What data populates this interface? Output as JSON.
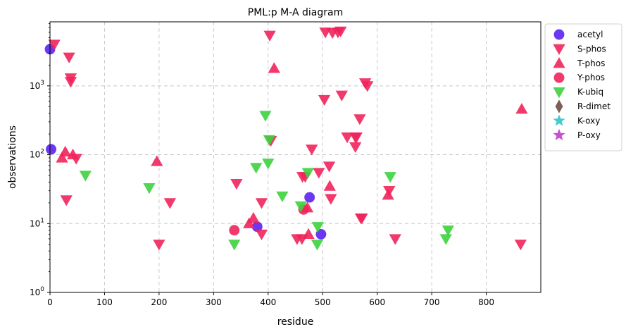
{
  "chart_data": {
    "type": "scatter",
    "title": "PML:p M-A diagram",
    "xlabel": "residue",
    "ylabel": "observations",
    "xlim": [
      0,
      900
    ],
    "ylim": [
      1,
      8500
    ],
    "yscale": "log",
    "xticks": [
      0,
      100,
      200,
      300,
      400,
      500,
      600,
      700,
      800
    ],
    "yticks": [
      {
        "value": 1,
        "base": "10",
        "exp": "0"
      },
      {
        "value": 10,
        "base": "10",
        "exp": "1"
      },
      {
        "value": 100,
        "base": "10",
        "exp": "2"
      },
      {
        "value": 1000,
        "base": "10",
        "exp": "3"
      }
    ],
    "grid": true,
    "legend_position": "outside-right",
    "series": [
      {
        "name": "acetyl",
        "marker": "circle",
        "color": "#5b21f0",
        "points": [
          [
            0,
            3400
          ],
          [
            2,
            120
          ],
          [
            380,
            9
          ],
          [
            476,
            24
          ],
          [
            497,
            7
          ]
        ]
      },
      {
        "name": "S-phos",
        "marker": "triangle-down",
        "color": "#f0245c",
        "points": [
          [
            8,
            4000
          ],
          [
            35,
            2600
          ],
          [
            38,
            1300
          ],
          [
            38,
            1150
          ],
          [
            30,
            22
          ],
          [
            48,
            88
          ],
          [
            200,
            5
          ],
          [
            220,
            20
          ],
          [
            342,
            38
          ],
          [
            388,
            20
          ],
          [
            388,
            7
          ],
          [
            403,
            5400
          ],
          [
            405,
            160
          ],
          [
            453,
            6
          ],
          [
            462,
            6
          ],
          [
            463,
            48
          ],
          [
            468,
            48
          ],
          [
            480,
            120
          ],
          [
            493,
            55
          ],
          [
            503,
            630
          ],
          [
            505,
            6000
          ],
          [
            518,
            5900
          ],
          [
            528,
            6000
          ],
          [
            533,
            6200
          ],
          [
            535,
            730
          ],
          [
            512,
            68
          ],
          [
            515,
            23
          ],
          [
            545,
            180
          ],
          [
            560,
            180
          ],
          [
            562,
            180
          ],
          [
            560,
            130
          ],
          [
            568,
            330
          ],
          [
            570,
            12
          ],
          [
            572,
            12
          ],
          [
            578,
            1100
          ],
          [
            582,
            1000
          ],
          [
            622,
            30
          ],
          [
            633,
            6
          ],
          [
            863,
            5
          ]
        ]
      },
      {
        "name": "T-phos",
        "marker": "triangle-up",
        "color": "#f0245c",
        "points": [
          [
            22,
            90
          ],
          [
            28,
            110
          ],
          [
            42,
            100
          ],
          [
            196,
            80
          ],
          [
            365,
            10
          ],
          [
            373,
            12
          ],
          [
            411,
            1800
          ],
          [
            474,
            7
          ],
          [
            472,
            17
          ],
          [
            513,
            35
          ],
          [
            620,
            26
          ],
          [
            865,
            460
          ]
        ]
      },
      {
        "name": "Y-phos",
        "marker": "circle",
        "color": "#f0245c",
        "points": [
          [
            338,
            8
          ],
          [
            465,
            16
          ]
        ]
      },
      {
        "name": "K-ubiq",
        "marker": "triangle-down",
        "color": "#3ed13e",
        "points": [
          [
            65,
            50
          ],
          [
            182,
            33
          ],
          [
            338,
            5
          ],
          [
            378,
            65
          ],
          [
            395,
            370
          ],
          [
            400,
            75
          ],
          [
            402,
            165
          ],
          [
            426,
            25
          ],
          [
            460,
            18
          ],
          [
            473,
            55
          ],
          [
            490,
            5
          ],
          [
            491,
            9
          ],
          [
            624,
            48
          ],
          [
            726,
            6
          ],
          [
            730,
            8
          ]
        ]
      },
      {
        "name": "R-dimet",
        "marker": "diamond",
        "color": "#6f4e45",
        "points": []
      },
      {
        "name": "K-oxy",
        "marker": "star",
        "color": "#2fc7c7",
        "points": []
      },
      {
        "name": "P-oxy",
        "marker": "star",
        "color": "#c23ccf",
        "points": []
      }
    ]
  }
}
